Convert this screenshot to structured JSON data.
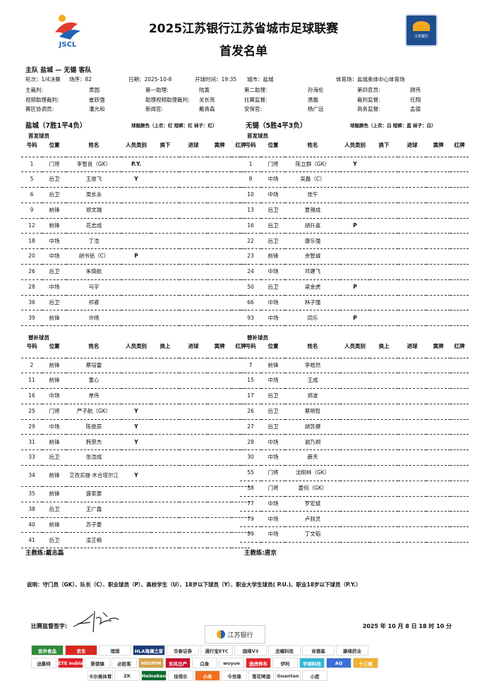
{
  "header": {
    "title": "2025江苏银行江苏省城市足球联赛",
    "subtitle": "首发名单",
    "logo_left_text": "JSCL",
    "logo_right_text": "江苏银行"
  },
  "match": {
    "line": "主队 盐城 — 无锡 客队",
    "info": [
      "轮次：1/4决赛",
      "场序：82",
      "日期：2025-10-8",
      "开球时间：19:35",
      "城市：盐城",
      "体育场：盐城奥体中心体育场"
    ],
    "officials": [
      [
        "主裁判:",
        "黄园",
        "第一助理:",
        "陆寅",
        "第二助理:",
        "孙海伦",
        "第四官员:",
        "顾伟"
      ],
      [
        "视频助理裁判:",
        "崔跃强",
        "助理视频助理裁判:",
        "关长亮",
        "比赛监督:",
        "唐磊",
        "裁判监督:",
        "任翔"
      ],
      [
        "赛区协调员:",
        "潘允和",
        "新闻官:",
        "戴青森",
        "安保官:",
        "杨广远",
        "商务监督:",
        "孟德"
      ]
    ]
  },
  "columns_start": [
    "号码",
    "位置",
    "姓名",
    "人员类别",
    "换下",
    "进球",
    "黄牌",
    "红牌"
  ],
  "columns_sub": [
    "号码",
    "位置",
    "姓名",
    "人员类别",
    "换上",
    "进球",
    "黄牌",
    "红牌"
  ],
  "home": {
    "name": "盐城（7胜1平4负）",
    "kit": "球服颜色（上衣：红 短裤：红 袜子：红）",
    "starters_label": "首发球员",
    "subs_label": "替补球员",
    "coach": "主教练:戴志磊",
    "starters": [
      [
        "1",
        "门将",
        "李智良（GK）",
        "P.Y."
      ],
      [
        "5",
        "后卫",
        "王俊飞",
        "Y"
      ],
      [
        "6",
        "后卫",
        "周长永",
        ""
      ],
      [
        "9",
        "前锋",
        "郑文瑞",
        ""
      ],
      [
        "12",
        "前锋",
        "花志成",
        ""
      ],
      [
        "18",
        "中场",
        "丁浩",
        ""
      ],
      [
        "20",
        "中场",
        "胡书铭（C）",
        "P"
      ],
      [
        "26",
        "后卫",
        "朱晓航",
        ""
      ],
      [
        "28",
        "中场",
        "马宇",
        ""
      ],
      [
        "36",
        "后卫",
        "祁睿",
        ""
      ],
      [
        "39",
        "前锋",
        "许旸",
        ""
      ]
    ],
    "subs": [
      [
        "2",
        "前锋",
        "蔡培雷",
        ""
      ],
      [
        "11",
        "前锋",
        "童心",
        ""
      ],
      [
        "16",
        "中场",
        "单伟",
        ""
      ],
      [
        "25",
        "门将",
        "严子航（GK）",
        "Y"
      ],
      [
        "29",
        "中场",
        "陈俊辰",
        "Y"
      ],
      [
        "31",
        "前锋",
        "韩景杰",
        "Y"
      ],
      [
        "33",
        "后卫",
        "张浩成",
        ""
      ],
      [
        "34",
        "前锋",
        "艾孜买提·木合塔尔江",
        "Y"
      ],
      [
        "35",
        "前锋",
        "盛家豪",
        ""
      ],
      [
        "38",
        "后卫",
        "王广鑫",
        ""
      ],
      [
        "40",
        "前锋",
        "苏子豪",
        ""
      ],
      [
        "41",
        "后卫",
        "凌正楠",
        ""
      ]
    ]
  },
  "away": {
    "name": "无锡（5胜4平3负）",
    "kit": "球服颜色（上衣：白 短裤：蓝 袜子：白）",
    "starters_label": "首发球员",
    "subs_label": "替补球员",
    "coach": "主教练:唐京",
    "starters": [
      [
        "1",
        "门将",
        "陈立群（GK）",
        "Y"
      ],
      [
        "8",
        "中场",
        "吴磊（C）",
        ""
      ],
      [
        "10",
        "中场",
        "张午",
        ""
      ],
      [
        "13",
        "后卫",
        "夏锡成",
        ""
      ],
      [
        "16",
        "后卫",
        "胡升嘉",
        "P"
      ],
      [
        "22",
        "后卫",
        "康乐强",
        ""
      ],
      [
        "23",
        "前锋",
        "余智诚",
        ""
      ],
      [
        "24",
        "中场",
        "邓建飞",
        ""
      ],
      [
        "50",
        "后卫",
        "梁金虎",
        "P"
      ],
      [
        "66",
        "中场",
        "林子强",
        ""
      ],
      [
        "93",
        "中场",
        "同乐",
        "P"
      ]
    ],
    "subs": [
      [
        "7",
        "前锋",
        "李皓然",
        ""
      ],
      [
        "15",
        "中场",
        "王成",
        ""
      ],
      [
        "17",
        "后卫",
        "郑波",
        ""
      ],
      [
        "26",
        "后卫",
        "蔡明哲",
        ""
      ],
      [
        "27",
        "后卫",
        "胡苏健",
        ""
      ],
      [
        "28",
        "中场",
        "谢乃炯",
        ""
      ],
      [
        "30",
        "中场",
        "薛天",
        ""
      ],
      [
        "55",
        "门将",
        "沈栩林（GK）",
        ""
      ],
      [
        "58",
        "门将",
        "姜何（GK）",
        ""
      ],
      [
        "77",
        "中场",
        "罗宏斌",
        ""
      ],
      [
        "79",
        "中场",
        "卢则灵",
        ""
      ],
      [
        "99",
        "中场",
        "丁文韬",
        ""
      ]
    ]
  },
  "footer": {
    "note": "说明：守门员（GK）、队长（C）、职业球员（P）、高校学生（U）、18岁以下球员（Y）、职业大学生球员( P.U.)、职业18岁以下球员（P.Y.）",
    "sign_label": "比赛监督签字:",
    "signed_time": "2025 年 10 月 8 日 18 时 10 分",
    "bank_logo": "江苏银行 BANK OF JIANGSU"
  },
  "sponsors": [
    [
      [
        "安井食品",
        "#2e8b3a"
      ],
      [
        "京东",
        "#d9261c"
      ],
      [
        "理想",
        "#ffffff"
      ],
      [
        "HLA海澜之家",
        "#1b3a7a"
      ],
      [
        "华泰证券",
        "#ffffff"
      ],
      [
        "通行宝ETC",
        "#ffffff"
      ],
      [
        "国缘V3",
        "#ffffff"
      ],
      [
        "龙蟠科技",
        "#ffffff"
      ],
      [
        "肯德基",
        "#ffffff"
      ],
      [
        "康缘药业",
        "#ffffff"
      ]
    ],
    [
      [
        "迪桑特",
        "#ffffff"
      ],
      [
        "ZTE nubia",
        "#e0202a"
      ],
      [
        "景德镇",
        "#ffffff"
      ],
      [
        "必胜客",
        "#ffffff"
      ],
      [
        "HOSPIN",
        "#d4a24a"
      ],
      [
        "东风日产",
        "#c8102e"
      ],
      [
        "白象",
        "#ffffff"
      ],
      [
        "wuyue",
        "#ffffff"
      ],
      [
        "途虎养车",
        "#e8232a"
      ],
      [
        "伊利",
        "#ffffff"
      ],
      [
        "宇视科技",
        "#2eb6d6"
      ],
      [
        "AQ",
        "#3c6fd6"
      ],
      [
        "十三香",
        "#f0b030"
      ]
    ],
    [
      [
        "卡尔美体育",
        "#ffffff"
      ],
      [
        "ZK",
        "#ffffff"
      ],
      [
        "Heineken",
        "#0b6b2f"
      ],
      [
        "佳得乐",
        "#ffffff"
      ],
      [
        "小米",
        "#f07020"
      ],
      [
        "今世缘",
        "#ffffff"
      ],
      [
        "雪花啤酒",
        "#ffffff"
      ],
      [
        "Guantao",
        "#ffffff"
      ],
      [
        "小度",
        "#ffffff"
      ]
    ]
  ]
}
